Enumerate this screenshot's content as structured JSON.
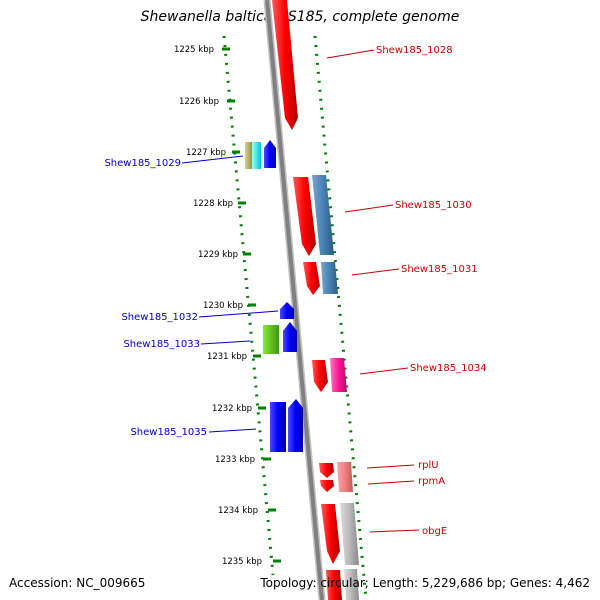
{
  "title": "Shewanella baltica OS185, complete genome",
  "accession": "Accession: NC_009665",
  "topology": "Topology: circular; Length: 5,229,686 bp; Genes: 4,462",
  "ticks": [
    "1225 kbp",
    "1226 kbp",
    "1227 kbp",
    "1228 kbp",
    "1229 kbp",
    "1230 kbp",
    "1231 kbp",
    "1232 kbp",
    "1233 kbp",
    "1234 kbp",
    "1235 kbp"
  ],
  "colors": {
    "forward_label": "#cc0000",
    "reverse_label": "#0000cc",
    "backbone": "#808080",
    "ruler_dots": "#008000"
  },
  "labels": [
    {
      "id": "shew185-1028",
      "text": "Shew185_1028",
      "strand": "forward"
    },
    {
      "id": "shew185-1029",
      "text": "Shew185_1029",
      "strand": "reverse"
    },
    {
      "id": "shew185-1030",
      "text": "Shew185_1030",
      "strand": "forward"
    },
    {
      "id": "shew185-1031",
      "text": "Shew185_1031",
      "strand": "forward"
    },
    {
      "id": "shew185-1032",
      "text": "Shew185_1032",
      "strand": "reverse"
    },
    {
      "id": "shew185-1033",
      "text": "Shew185_1033",
      "strand": "reverse"
    },
    {
      "id": "shew185-1034",
      "text": "Shew185_1034",
      "strand": "forward"
    },
    {
      "id": "shew185-1035",
      "text": "Shew185_1035",
      "strand": "reverse"
    },
    {
      "id": "rplu",
      "text": "rplU",
      "strand": "forward"
    },
    {
      "id": "rpma",
      "text": "rpmA",
      "strand": "forward"
    },
    {
      "id": "obge",
      "text": "obgE",
      "strand": "forward"
    }
  ]
}
